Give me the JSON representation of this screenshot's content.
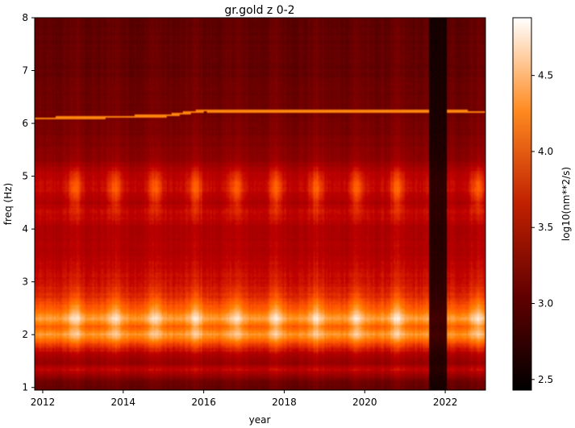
{
  "chart_data": {
    "type": "heatmap",
    "title": "gr.gold z 0-2",
    "xlabel": "year",
    "ylabel": "freq (Hz)",
    "xlim": [
      2011.8,
      2023.0
    ],
    "ylim": [
      0.95,
      8.0
    ],
    "x_ticks": [
      2012,
      2014,
      2016,
      2018,
      2020,
      2022
    ],
    "x_tick_labels": [
      "2012",
      "2014",
      "2016",
      "2018",
      "2020",
      "2022"
    ],
    "y_ticks": [
      1,
      2,
      3,
      4,
      5,
      6,
      7,
      8
    ],
    "y_tick_labels": [
      "1",
      "2",
      "3",
      "4",
      "5",
      "6",
      "7",
      "8"
    ],
    "colorbar": {
      "label": "log10(nm**2/s)",
      "range": [
        2.43,
        4.88
      ],
      "ticks": [
        2.5,
        3.0,
        3.5,
        4.0,
        4.5
      ],
      "tick_labels": [
        "2.5",
        "3.0",
        "3.5",
        "4.0",
        "4.5"
      ],
      "colormap": "gist_heat"
    },
    "freq_profile": [
      {
        "freq": 0.95,
        "value": 3.05
      },
      {
        "freq": 1.1,
        "value": 3.15
      },
      {
        "freq": 1.25,
        "value": 3.5
      },
      {
        "freq": 1.35,
        "value": 3.7
      },
      {
        "freq": 1.45,
        "value": 3.4
      },
      {
        "freq": 1.6,
        "value": 3.55
      },
      {
        "freq": 1.8,
        "value": 3.95
      },
      {
        "freq": 2.0,
        "value": 4.5
      },
      {
        "freq": 2.15,
        "value": 4.2
      },
      {
        "freq": 2.3,
        "value": 4.55
      },
      {
        "freq": 2.5,
        "value": 4.2
      },
      {
        "freq": 2.7,
        "value": 3.95
      },
      {
        "freq": 3.0,
        "value": 3.75
      },
      {
        "freq": 3.5,
        "value": 3.6
      },
      {
        "freq": 4.0,
        "value": 3.55
      },
      {
        "freq": 4.3,
        "value": 3.75
      },
      {
        "freq": 4.5,
        "value": 3.65
      },
      {
        "freq": 4.75,
        "value": 3.85
      },
      {
        "freq": 5.0,
        "value": 3.75
      },
      {
        "freq": 5.3,
        "value": 3.4
      },
      {
        "freq": 5.6,
        "value": 3.3
      },
      {
        "freq": 6.0,
        "value": 3.2
      },
      {
        "freq": 6.5,
        "value": 3.15
      },
      {
        "freq": 7.0,
        "value": 3.1
      },
      {
        "freq": 7.5,
        "value": 3.08
      },
      {
        "freq": 8.0,
        "value": 3.05
      }
    ],
    "annual_peaks_years": [
      2012.8,
      2013.8,
      2014.8,
      2015.8,
      2016.8,
      2017.8,
      2018.8,
      2019.8,
      2020.8,
      2021.8,
      2022.8
    ],
    "low_power_gaps": [
      {
        "x_start": 2021.6,
        "x_end": 2022.05,
        "value": 2.6
      }
    ],
    "line_feature": {
      "description": "narrow line near 6.1-6.25 Hz",
      "points": [
        {
          "x": 2011.8,
          "freq": 6.09
        },
        {
          "x": 2015.0,
          "freq": 6.14
        },
        {
          "x": 2016.0,
          "freq": 6.24
        },
        {
          "x": 2018.5,
          "freq": 6.23
        },
        {
          "x": 2022.6,
          "freq": 6.22
        }
      ],
      "value": 4.3
    }
  }
}
